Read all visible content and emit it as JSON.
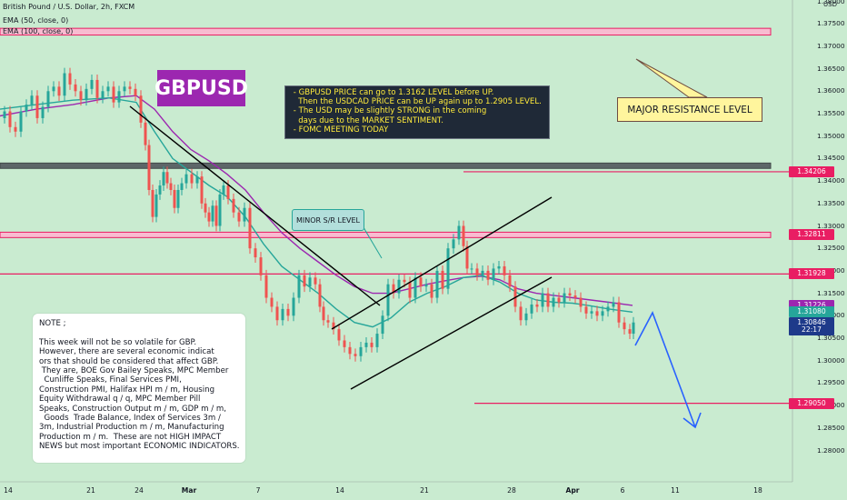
{
  "header": {
    "symbol_line": "British Pound / U.S. Dollar, 2h, FXCM",
    "ema1": "EMA (50, close, 0)",
    "ema2": "EMA (100, close, 0)"
  },
  "logo_text": "GBPUSD",
  "analysis_notes": [
    " - GBPUSD PRICE can go to 1.3162 LEVEL before UP.",
    "   Then the USDCAD PRICE can be UP again up to 1.2905 LEVEL.",
    " - The USD may be slightly STRONG in the coming",
    "   days due to the MARKET SENTIMENT.",
    " - FOMC MEETING TODAY"
  ],
  "labels": {
    "major": "MAJOR RESISTANCE LEVEL",
    "minor": "MINOR S/R LEVEL"
  },
  "note_lines": [
    "NOTE ;",
    "",
    "This week will not be so volatile for GBP.",
    "However, there are several economic indicat",
    "ors that should be considered that affect GBP.",
    " They are, BOE Gov Bailey Speaks, MPC Member",
    "  Cunliffe Speaks, Final Services PMI,",
    "Construction PMI, Halifax HPI m / m, Housing",
    "Equity Withdrawal q / q, MPC Member Pill",
    "Speaks, Construction Output m / m, GDP m / m,",
    "  Goods  Trade Balance, Index of Services 3m /",
    "3m, Industrial Production m / m, Manufacturing",
    "Production m / m.  These are not HIGH IMPACT",
    "NEWS but most important ECONOMIC INDICATORS."
  ],
  "colors": {
    "bg_green": "#c9ebd0",
    "bull": "#26a69a",
    "bear": "#ef5350",
    "ema50": "#26a69a",
    "ema100": "#9c27b0",
    "level_red": "#e91e63",
    "zone_fill": "#f8bbd0",
    "dark_zone": "#4b4f56",
    "arrow_blue": "#2962ff"
  },
  "chart_data": {
    "type": "candlestick",
    "title": "British Pound / U.S. Dollar, 2h, FXCM",
    "y_unit": "USD",
    "ylim": [
      1.2775,
      1.3835
    ],
    "y_ticks": [
      "1.38000",
      "1.37500",
      "1.37000",
      "1.36500",
      "1.36000",
      "1.35500",
      "1.35000",
      "1.34500",
      "1.34000",
      "1.33500",
      "1.33000",
      "1.32500",
      "1.32000",
      "1.31500",
      "1.31000",
      "1.30500",
      "1.30000",
      "1.29500",
      "1.29000",
      "1.28500",
      "1.28000"
    ],
    "x_ticks": [
      "14",
      "21",
      "24",
      "Mar",
      "7",
      "14",
      "21",
      "28",
      "Apr",
      "6",
      "11",
      "18"
    ],
    "levels": {
      "major_resistance_zone": [
        1.3725,
        1.374
      ],
      "dark_zone": [
        1.3428,
        1.344
      ],
      "minor_sr_zone": [
        1.3274,
        1.3286
      ],
      "red_line_1": 1.3193,
      "red_line_2": 1.2905
    },
    "price_tags": [
      {
        "text": "1.34206",
        "value": 1.34206,
        "color": "#e91e63"
      },
      {
        "text": "1.32811",
        "value": 1.32811,
        "color": "#e91e63"
      },
      {
        "text": "1.31928",
        "value": 1.31928,
        "color": "#e91e63"
      },
      {
        "text": "1.31226",
        "value": 1.31226,
        "color": "#9c27b0"
      },
      {
        "text": "1.31080",
        "value": 1.3108,
        "color": "#26a69a"
      },
      {
        "text": "1.30846",
        "value": 1.30846,
        "color": "#1e3a8a"
      },
      {
        "text": "22:17",
        "value": 1.3069,
        "color": "#1e3a8a"
      },
      {
        "text": "1.29050",
        "value": 1.2905,
        "color": "#e91e63"
      }
    ],
    "close_path": [
      [
        0,
        1.354
      ],
      [
        6,
        1.3555
      ],
      [
        12,
        1.352
      ],
      [
        18,
        1.351
      ],
      [
        24,
        1.3555
      ],
      [
        30,
        1.357
      ],
      [
        36,
        1.359
      ],
      [
        42,
        1.354
      ],
      [
        48,
        1.3565
      ],
      [
        54,
        1.36
      ],
      [
        60,
        1.361
      ],
      [
        66,
        1.359
      ],
      [
        72,
        1.364
      ],
      [
        78,
        1.3615
      ],
      [
        84,
        1.36
      ],
      [
        90,
        1.358
      ],
      [
        96,
        1.3605
      ],
      [
        102,
        1.3625
      ],
      [
        108,
        1.3585
      ],
      [
        114,
        1.36
      ],
      [
        120,
        1.361
      ],
      [
        126,
        1.3575
      ],
      [
        132,
        1.36
      ],
      [
        138,
        1.361
      ],
      [
        144,
        1.3605
      ],
      [
        150,
        1.359
      ],
      [
        156,
        1.353
      ],
      [
        160,
        1.348
      ],
      [
        164,
        1.338
      ],
      [
        168,
        1.332
      ],
      [
        172,
        1.337
      ],
      [
        176,
        1.339
      ],
      [
        180,
        1.342
      ],
      [
        184,
        1.3395
      ],
      [
        188,
        1.338
      ],
      [
        192,
        1.334
      ],
      [
        196,
        1.338
      ],
      [
        200,
        1.3395
      ],
      [
        206,
        1.3415
      ],
      [
        212,
        1.3395
      ],
      [
        218,
        1.341
      ],
      [
        222,
        1.335
      ],
      [
        226,
        1.333
      ],
      [
        230,
        1.331
      ],
      [
        234,
        1.3345
      ],
      [
        238,
        1.33
      ],
      [
        242,
        1.337
      ],
      [
        246,
        1.339
      ],
      [
        252,
        1.336
      ],
      [
        258,
        1.333
      ],
      [
        264,
        1.331
      ],
      [
        270,
        1.334
      ],
      [
        276,
        1.325
      ],
      [
        282,
        1.323
      ],
      [
        288,
        1.319
      ],
      [
        294,
        1.314
      ],
      [
        300,
        1.312
      ],
      [
        306,
        1.309
      ],
      [
        312,
        1.3115
      ],
      [
        318,
        1.31
      ],
      [
        324,
        1.314
      ],
      [
        330,
        1.319
      ],
      [
        336,
        1.3165
      ],
      [
        342,
        1.3185
      ],
      [
        348,
        1.317
      ],
      [
        352,
        1.312
      ],
      [
        356,
        1.309
      ],
      [
        362,
        1.3085
      ],
      [
        368,
        1.307
      ],
      [
        374,
        1.3045
      ],
      [
        380,
        1.303
      ],
      [
        386,
        1.3015
      ],
      [
        392,
        1.301
      ],
      [
        398,
        1.303
      ],
      [
        404,
        1.304
      ],
      [
        410,
        1.303
      ],
      [
        416,
        1.306
      ],
      [
        422,
        1.31
      ],
      [
        428,
        1.317
      ],
      [
        434,
        1.315
      ],
      [
        440,
        1.318
      ],
      [
        446,
        1.3175
      ],
      [
        452,
        1.314
      ],
      [
        458,
        1.3185
      ],
      [
        464,
        1.3165
      ],
      [
        470,
        1.317
      ],
      [
        476,
        1.314
      ],
      [
        482,
        1.32
      ],
      [
        488,
        1.316
      ],
      [
        494,
        1.325
      ],
      [
        500,
        1.327
      ],
      [
        506,
        1.33
      ],
      [
        510,
        1.3255
      ],
      [
        514,
        1.3205
      ],
      [
        520,
        1.3205
      ],
      [
        526,
        1.319
      ],
      [
        532,
        1.32
      ],
      [
        538,
        1.318
      ],
      [
        544,
        1.3205
      ],
      [
        550,
        1.321
      ],
      [
        556,
        1.319
      ],
      [
        562,
        1.3165
      ],
      [
        568,
        1.312
      ],
      [
        574,
        1.309
      ],
      [
        580,
        1.3105
      ],
      [
        586,
        1.3125
      ],
      [
        592,
        1.312
      ],
      [
        598,
        1.315
      ],
      [
        604,
        1.312
      ],
      [
        610,
        1.314
      ],
      [
        616,
        1.313
      ],
      [
        622,
        1.315
      ],
      [
        628,
        1.3145
      ],
      [
        634,
        1.314
      ],
      [
        640,
        1.312
      ],
      [
        646,
        1.3105
      ],
      [
        652,
        1.311
      ],
      [
        658,
        1.31
      ],
      [
        664,
        1.311
      ],
      [
        670,
        1.312
      ],
      [
        676,
        1.313
      ],
      [
        682,
        1.3085
      ],
      [
        688,
        1.307
      ],
      [
        694,
        1.306
      ],
      [
        696,
        1.3085
      ]
    ],
    "ema50_path": [
      [
        0,
        1.356
      ],
      [
        40,
        1.357
      ],
      [
        80,
        1.358
      ],
      [
        120,
        1.3585
      ],
      [
        150,
        1.3575
      ],
      [
        170,
        1.351
      ],
      [
        190,
        1.345
      ],
      [
        210,
        1.342
      ],
      [
        230,
        1.339
      ],
      [
        250,
        1.3365
      ],
      [
        270,
        1.332
      ],
      [
        290,
        1.326
      ],
      [
        310,
        1.321
      ],
      [
        330,
        1.318
      ],
      [
        350,
        1.315
      ],
      [
        370,
        1.3115
      ],
      [
        390,
        1.3085
      ],
      [
        410,
        1.3075
      ],
      [
        430,
        1.3095
      ],
      [
        450,
        1.313
      ],
      [
        470,
        1.315
      ],
      [
        490,
        1.3165
      ],
      [
        510,
        1.3185
      ],
      [
        530,
        1.319
      ],
      [
        550,
        1.3175
      ],
      [
        570,
        1.315
      ],
      [
        590,
        1.3135
      ],
      [
        610,
        1.313
      ],
      [
        630,
        1.3128
      ],
      [
        650,
        1.3122
      ],
      [
        670,
        1.3115
      ],
      [
        696,
        1.3108
      ]
    ],
    "ema100_path": [
      [
        0,
        1.3545
      ],
      [
        40,
        1.356
      ],
      [
        80,
        1.357
      ],
      [
        120,
        1.3585
      ],
      [
        150,
        1.359
      ],
      [
        170,
        1.356
      ],
      [
        190,
        1.351
      ],
      [
        210,
        1.347
      ],
      [
        230,
        1.3445
      ],
      [
        250,
        1.3415
      ],
      [
        270,
        1.338
      ],
      [
        290,
        1.333
      ],
      [
        310,
        1.3285
      ],
      [
        330,
        1.325
      ],
      [
        350,
        1.322
      ],
      [
        370,
        1.319
      ],
      [
        390,
        1.3165
      ],
      [
        410,
        1.315
      ],
      [
        430,
        1.315
      ],
      [
        450,
        1.316
      ],
      [
        470,
        1.317
      ],
      [
        490,
        1.3178
      ],
      [
        510,
        1.3185
      ],
      [
        530,
        1.3188
      ],
      [
        550,
        1.318
      ],
      [
        570,
        1.316
      ],
      [
        590,
        1.315
      ],
      [
        610,
        1.3145
      ],
      [
        630,
        1.314
      ],
      [
        650,
        1.3135
      ],
      [
        670,
        1.313
      ],
      [
        696,
        1.3123
      ]
    ]
  }
}
